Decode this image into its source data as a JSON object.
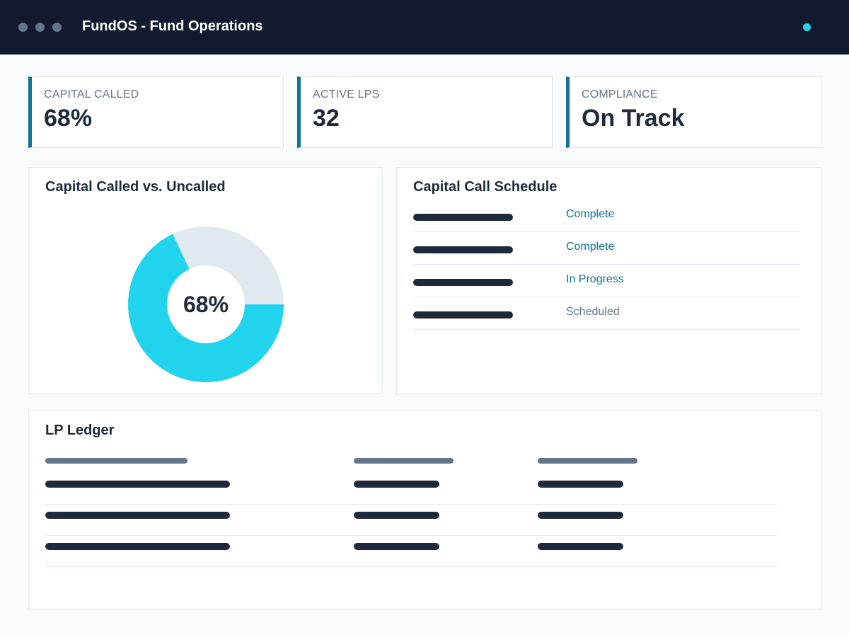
{
  "window": {
    "title": "FundOS - Fund Operations",
    "controls": [
      "window-dot",
      "window-dot",
      "window-dot"
    ],
    "status_indicator_color": "#22d3ee"
  },
  "kpis": [
    {
      "label": "CAPITAL CALLED",
      "value": "68%"
    },
    {
      "label": "ACTIVE LPS",
      "value": "32"
    },
    {
      "label": "COMPLIANCE",
      "value": "On Track"
    }
  ],
  "capital_chart": {
    "title": "Capital Called vs. Uncalled",
    "center_label": "68%"
  },
  "chart_data": {
    "type": "pie",
    "title": "Capital Called vs. Uncalled",
    "slices": [
      {
        "value": 68,
        "color": "#22d3ee"
      },
      {
        "value": 32,
        "color": "#e2e8f0"
      }
    ],
    "center_label": "68%"
  },
  "schedule": {
    "title": "Capital Call Schedule",
    "rows": [
      {
        "status": "Complete",
        "status_color": "#0e7490"
      },
      {
        "status": "Complete",
        "status_color": "#0e7490"
      },
      {
        "status": "In Progress",
        "status_color": "#0e7490"
      },
      {
        "status": "Scheduled",
        "status_color": "#64748b"
      }
    ]
  },
  "ledger": {
    "title": "LP Ledger"
  },
  "colors": {
    "accent": "#0e7490",
    "cyan": "#22d3ee",
    "titlebar": "#111a2e",
    "text_dark": "#1e293b",
    "text_muted": "#64748b"
  }
}
